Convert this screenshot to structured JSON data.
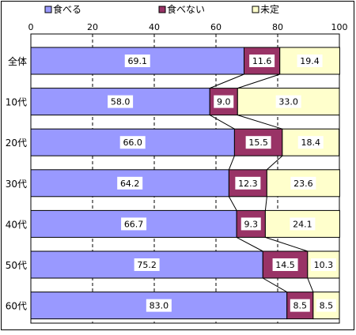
{
  "chart_data": {
    "type": "bar",
    "orientation": "horizontal",
    "stacked": true,
    "categories": [
      "全体",
      "10代",
      "20代",
      "30代",
      "40代",
      "50代",
      "60代"
    ],
    "series": [
      {
        "name": "食べる",
        "color": "#9999ff",
        "values": [
          69.1,
          58.0,
          66.0,
          64.2,
          66.7,
          75.2,
          83.0
        ]
      },
      {
        "name": "食べない",
        "color": "#993366",
        "values": [
          11.6,
          9.0,
          15.5,
          12.3,
          9.3,
          14.5,
          8.5
        ]
      },
      {
        "name": "未定",
        "color": "#ffffcc",
        "values": [
          19.4,
          33.0,
          18.4,
          23.6,
          24.1,
          10.3,
          8.5
        ]
      }
    ],
    "xlim": [
      0,
      100
    ],
    "xticks": [
      0,
      20,
      40,
      60,
      80,
      100
    ],
    "grid": "vertical-dashed",
    "legend": "top",
    "series_lines": true
  }
}
